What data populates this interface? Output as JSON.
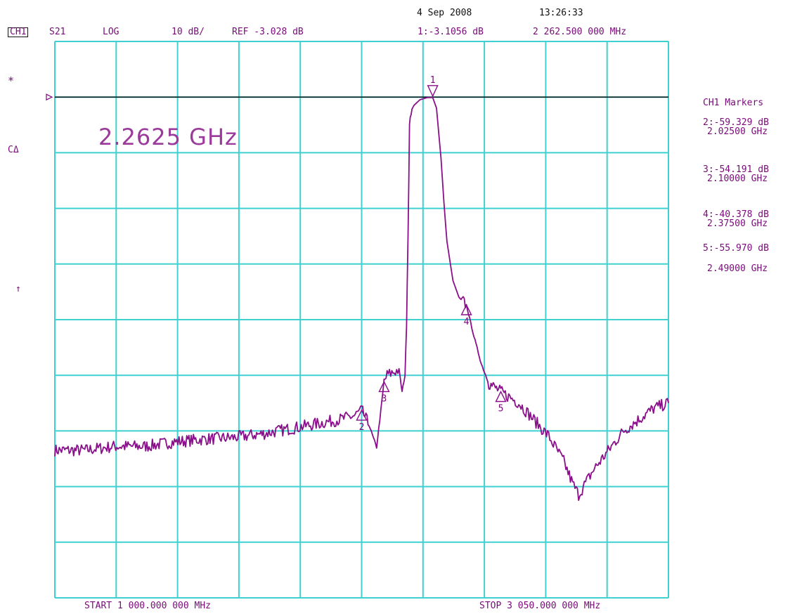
{
  "header": {
    "date": "4 Sep 2008",
    "time": "13:26:33",
    "channel": "CH1",
    "measurement": "S21",
    "format": "LOG",
    "scale": "10 dB/",
    "ref": "REF -3.028 dB",
    "active_marker": "1:-3.1056 dB",
    "active_marker_freq": "2 262.500 000 MHz"
  },
  "left_annotations": {
    "star": "*",
    "cdelta": "CΔ",
    "arrow": "↑"
  },
  "readout": "2.2625 GHz",
  "markers_panel": {
    "title": "CH1 Markers",
    "items": [
      {
        "value": "2:-59.329 dB",
        "freq": "2.02500 GHz"
      },
      {
        "value": "3:-54.191 dB",
        "freq": "2.10000 GHz"
      },
      {
        "value": "4:-40.378 dB",
        "freq": "2.37500 GHz"
      },
      {
        "value": "5:-55.970 dB",
        "freq": "2.49000 GHz"
      }
    ]
  },
  "footer": {
    "start": "START 1 000.000 000 MHz",
    "stop": "STOP 3 050.000 000 MHz"
  },
  "colors": {
    "grid": "#3fd1d1",
    "trace": "#8a0f8a",
    "reference_line": "#000000",
    "text": "#7a0a7a"
  },
  "chart_data": {
    "type": "line",
    "title": "",
    "xlabel": "",
    "ylabel": "",
    "xlim_ghz": [
      1.0,
      3.05
    ],
    "ylim_db": [
      -93.028,
      6.972
    ],
    "grid": true,
    "reference_line_db": -3.028,
    "series": [
      {
        "x_ghz": [
          1.0,
          1.1,
          1.2,
          1.3,
          1.4,
          1.5,
          1.6,
          1.7,
          1.75,
          1.8,
          1.85,
          1.9,
          1.95,
          2.0,
          2.025,
          2.05,
          2.075,
          2.1,
          2.11,
          2.13,
          2.15,
          2.16,
          2.17,
          2.175,
          2.18,
          2.185,
          2.19,
          2.2,
          2.22,
          2.245,
          2.2625,
          2.275,
          2.29,
          2.3,
          2.31,
          2.33,
          2.35,
          2.375,
          2.4,
          2.425,
          2.45,
          2.49,
          2.55,
          2.6,
          2.65,
          2.7,
          2.73,
          2.75,
          2.8,
          2.9,
          3.0,
          3.05
        ],
        "y_db": [
          -66.5,
          -66.5,
          -65.8,
          -65.8,
          -65.0,
          -64.5,
          -64.2,
          -63.5,
          -63.0,
          -62.5,
          -62.0,
          -61.5,
          -61.0,
          -60.3,
          -59.3,
          -62.0,
          -66.0,
          -54.2,
          -53.0,
          -52.5,
          -52.0,
          -56.0,
          -53.0,
          -44.0,
          -28.0,
          -8.0,
          -5.5,
          -4.5,
          -3.5,
          -3.1,
          -3.1056,
          -5.0,
          -14.0,
          -22.0,
          -29.0,
          -36.0,
          -39.0,
          -40.4,
          -46.0,
          -51.0,
          -54.5,
          -55.97,
          -58.0,
          -61.0,
          -64.0,
          -68.5,
          -72.5,
          -74.5,
          -70.0,
          -63.0,
          -59.0,
          -58.0
        ]
      }
    ],
    "markers": [
      {
        "label": "1",
        "x_ghz": 2.2625,
        "y_db": -3.1056
      },
      {
        "label": "2",
        "x_ghz": 2.025,
        "y_db": -59.329
      },
      {
        "label": "3",
        "x_ghz": 2.1,
        "y_db": -54.191
      },
      {
        "label": "4",
        "x_ghz": 2.375,
        "y_db": -40.378
      },
      {
        "label": "5",
        "x_ghz": 2.49,
        "y_db": -55.97
      }
    ]
  }
}
